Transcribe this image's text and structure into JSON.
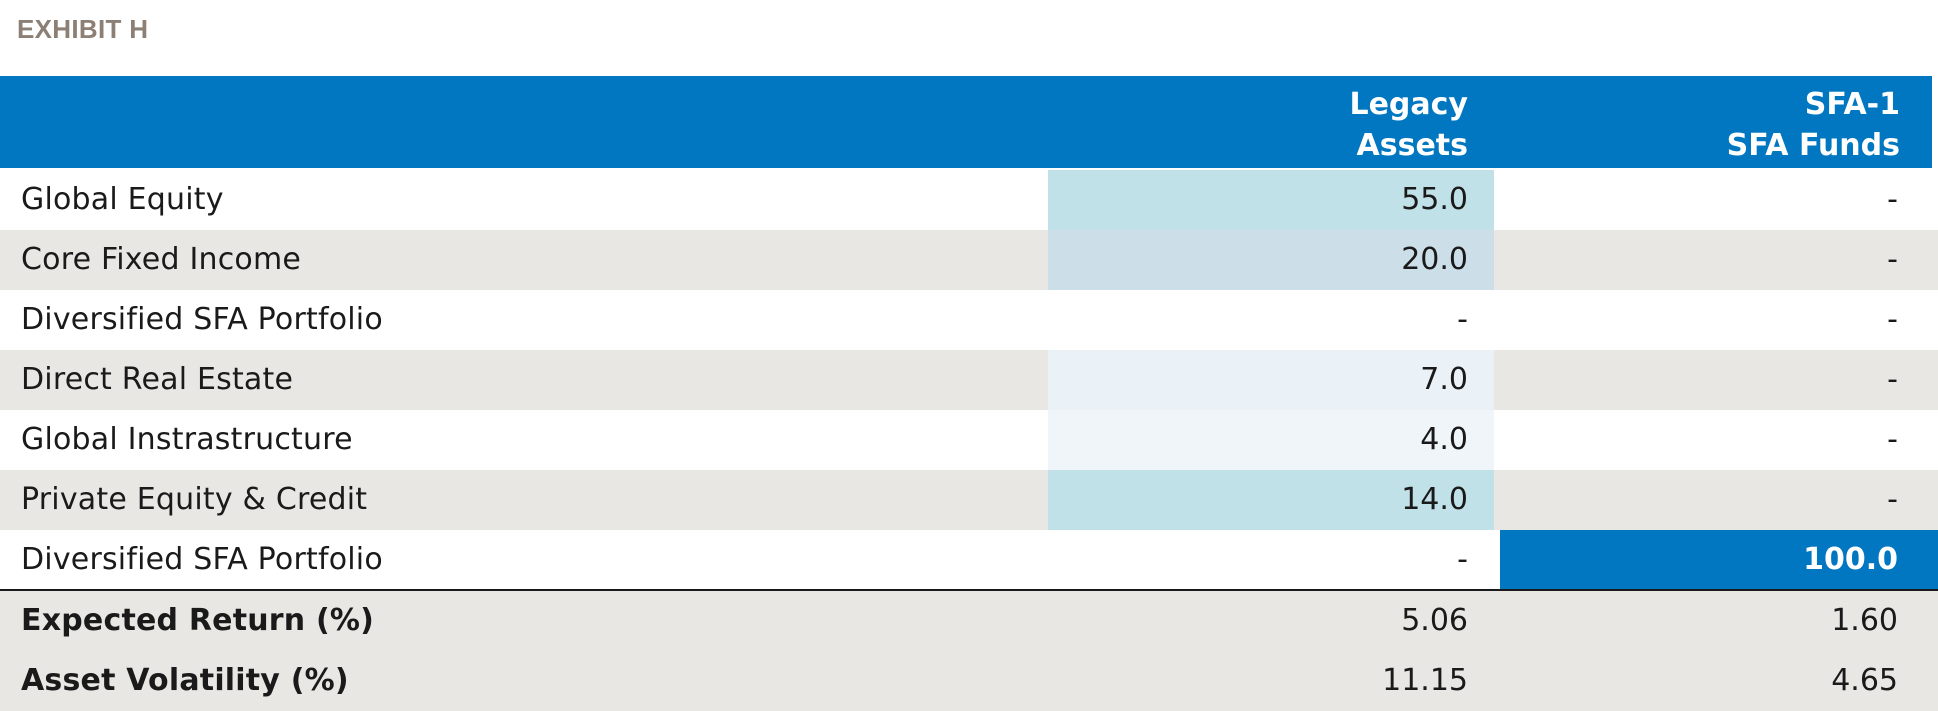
{
  "exhibit_label": "EXHIBIT H",
  "columns": {
    "legacy": [
      "Legacy",
      "Assets"
    ],
    "sfa": [
      "SFA-1",
      "SFA Funds"
    ]
  },
  "rows": [
    {
      "label": "Global Equity",
      "legacy": "55.0",
      "sfa": "-",
      "legacy_bg": "#c0e1e8",
      "sfa_bg": ""
    },
    {
      "label": "Core Fixed Income",
      "legacy": "20.0",
      "sfa": "-",
      "legacy_bg": "#ccdfe9",
      "sfa_bg": ""
    },
    {
      "label": "Diversified SFA Portfolio",
      "legacy": "-",
      "sfa": "-",
      "legacy_bg": "",
      "sfa_bg": ""
    },
    {
      "label": "Direct Real Estate",
      "legacy": "7.0",
      "sfa": "-",
      "legacy_bg": "#eaf2f8",
      "sfa_bg": ""
    },
    {
      "label": "Global Instrastructure",
      "legacy": "4.0",
      "sfa": "-",
      "legacy_bg": "#f0f5f9",
      "sfa_bg": ""
    },
    {
      "label": "Private Equity & Credit",
      "legacy": "14.0",
      "sfa": "-",
      "legacy_bg": "#c0e1e8",
      "sfa_bg": ""
    },
    {
      "label": "Diversified SFA Portfolio",
      "legacy": "-",
      "sfa": "100.0",
      "legacy_bg": "",
      "sfa_bg": "#0077c0"
    }
  ],
  "summary": [
    {
      "label": "Expected Return (%)",
      "legacy": "5.06",
      "sfa": "1.60"
    },
    {
      "label": "Asset Volatility (%)",
      "legacy": "11.15",
      "sfa": "4.65"
    }
  ],
  "colors": {
    "header_blue": "#0077c0",
    "row_grey": "#e8e7e3",
    "exhibit_label": "#8c8076"
  }
}
